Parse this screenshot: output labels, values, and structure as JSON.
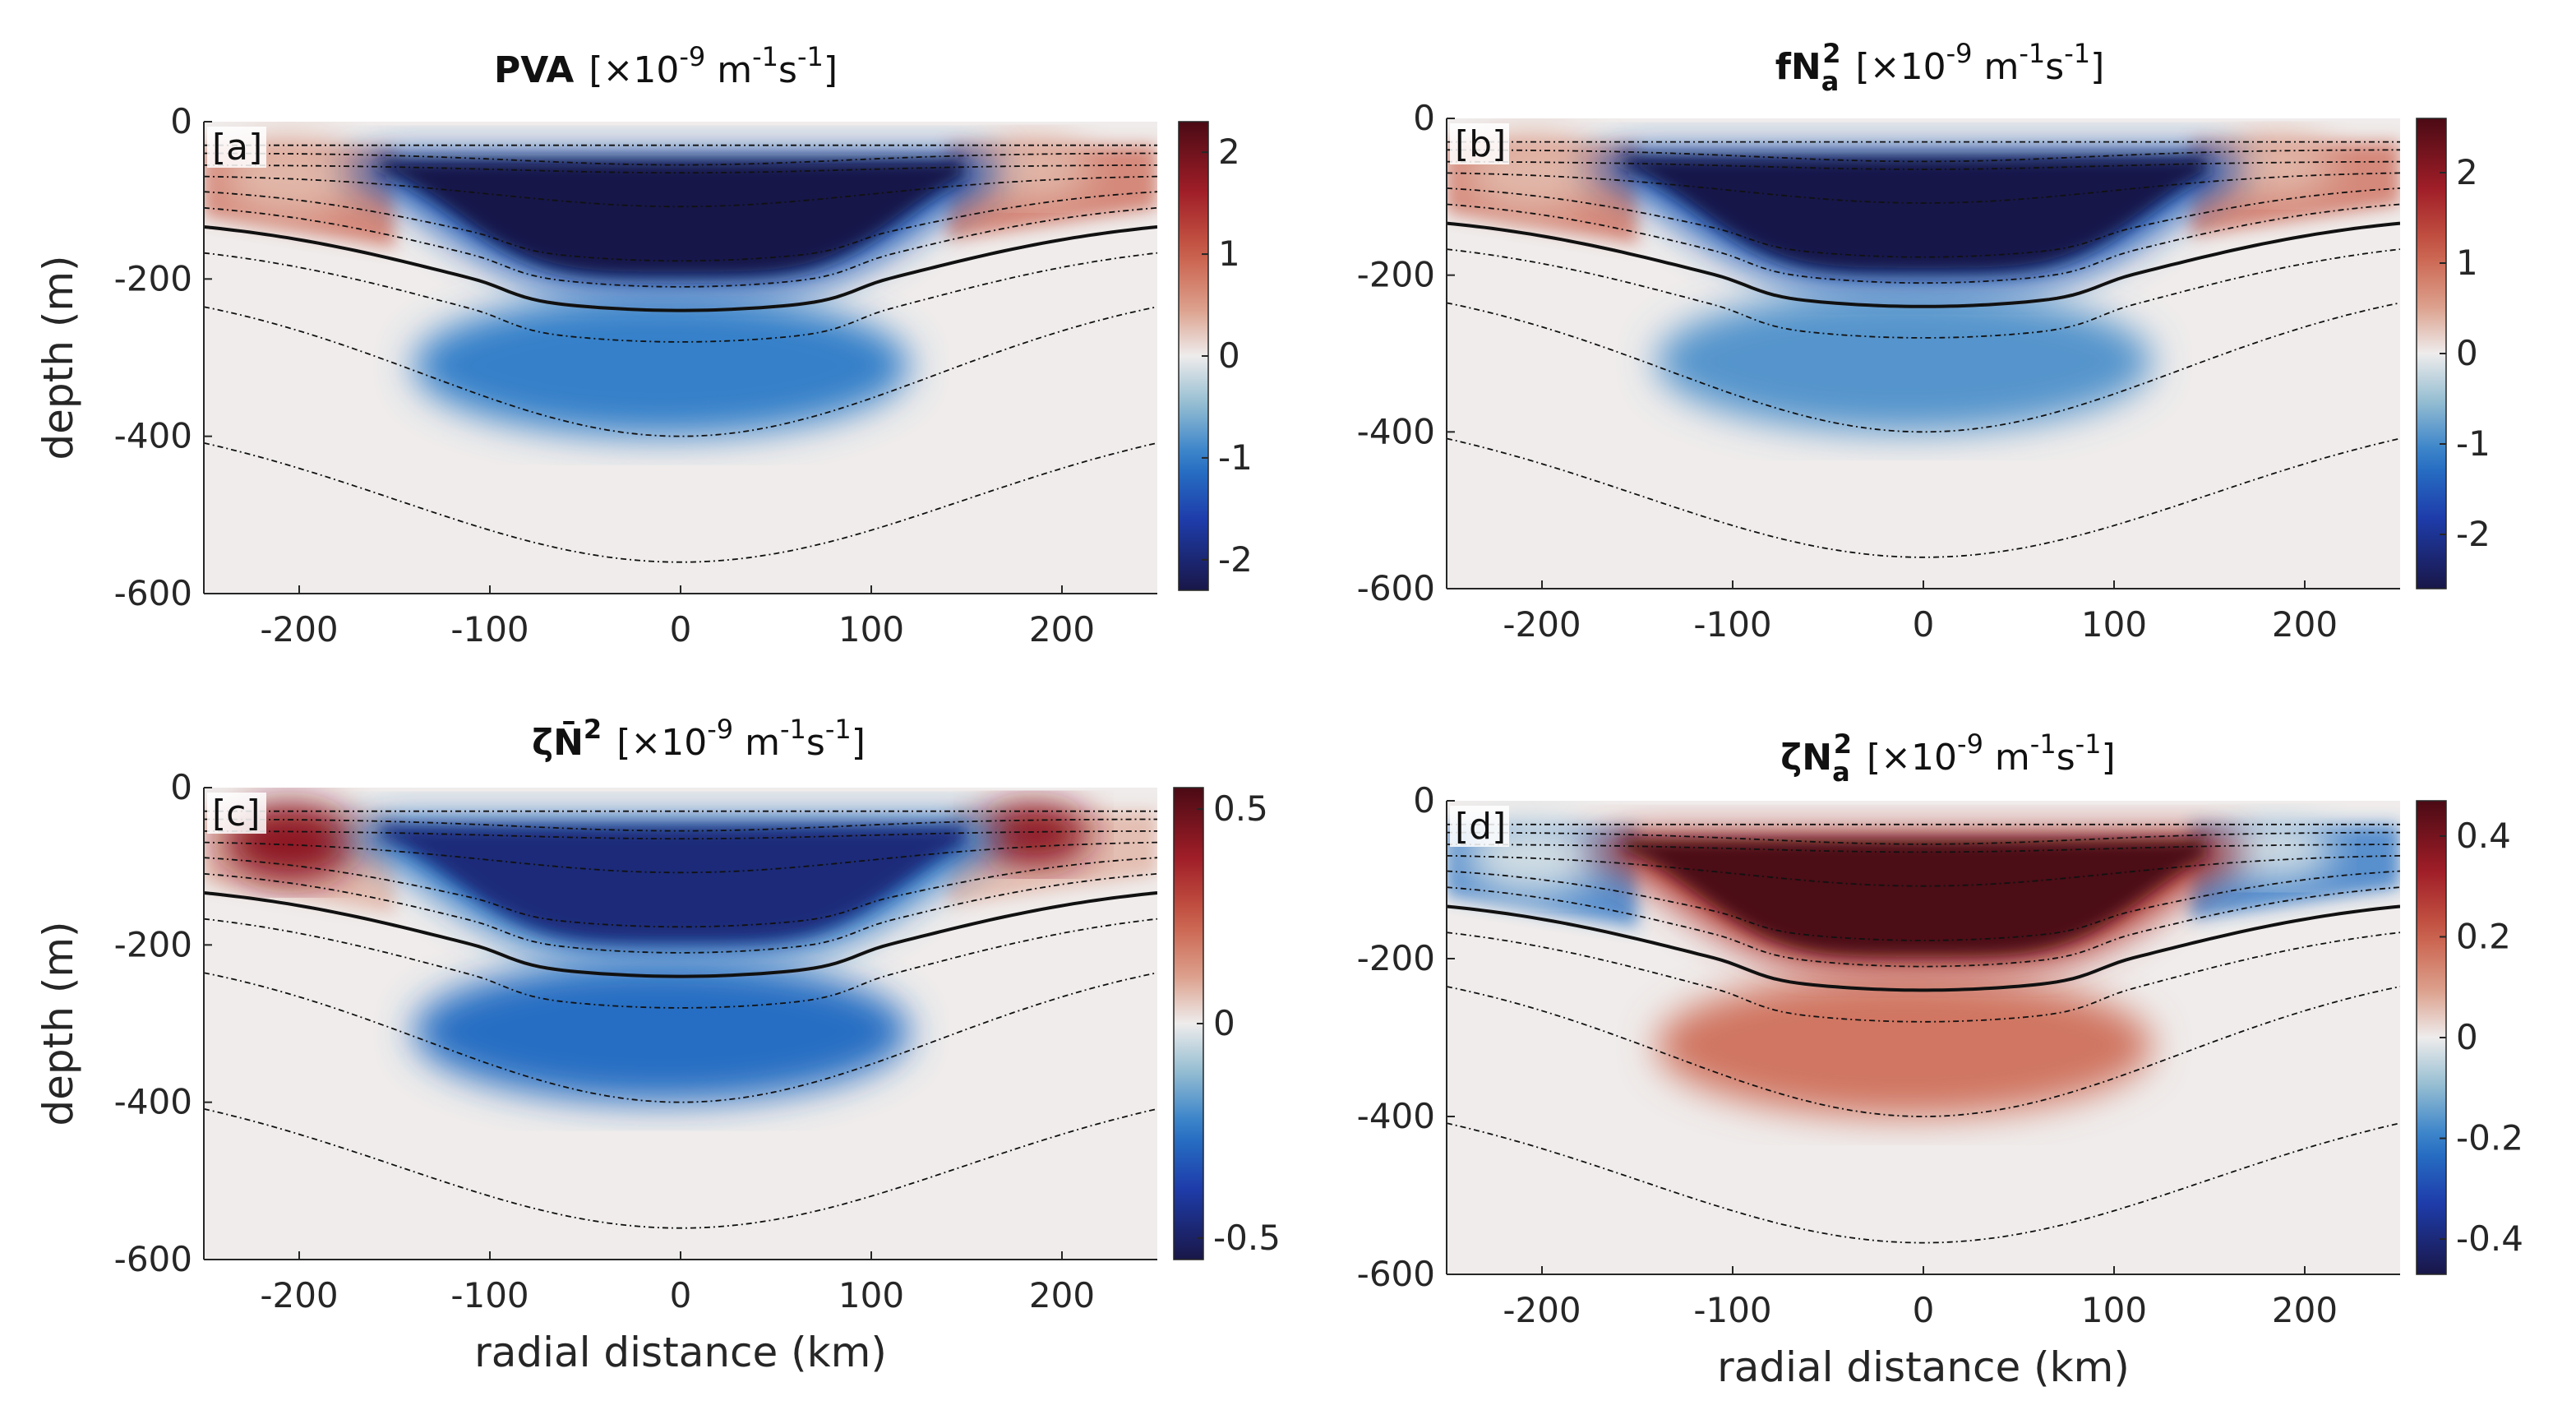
{
  "chart_data": [
    {
      "type": "heatmap",
      "panel_label": "[a]",
      "title": {
        "main": "PVA",
        "main_bold": true,
        "sub": "",
        "sup": "",
        "units_prefix": "[×10",
        "units_exp": "-9",
        "units_suffix": " m",
        "units_m_exp": "-1",
        "units_s": "s",
        "units_s_exp": "-1",
        "units_close": "]"
      },
      "xlabel": "",
      "ylabel": "depth (m)",
      "xlim": [
        -250,
        250
      ],
      "ylim": [
        -600,
        0
      ],
      "xticks": [
        -200,
        -100,
        0,
        100,
        200
      ],
      "yticks": [
        0,
        -200,
        -400,
        -600
      ],
      "colorbar": {
        "min": -2.3,
        "max": 2.3,
        "ticks": [
          2,
          1,
          0,
          -1,
          -2
        ]
      },
      "field": {
        "core_sign": -1,
        "core_intensity": 1.0,
        "deep_sign": -1,
        "deep_intensity": 0.3,
        "edge_sign": 1,
        "edge_intensity": 0.25,
        "lobe_sign": 1,
        "lobe_intensity": 0.1
      }
    },
    {
      "type": "heatmap",
      "panel_label": "[b]",
      "title": {
        "main": "fN",
        "main_bold": true,
        "sub": "a",
        "sup": "2",
        "units_prefix": "[×10",
        "units_exp": "-9",
        "units_suffix": " m",
        "units_m_exp": "-1",
        "units_s": "s",
        "units_s_exp": "-1",
        "units_close": "]"
      },
      "xlabel": "",
      "ylabel": "",
      "xlim": [
        -250,
        250
      ],
      "ylim": [
        -600,
        0
      ],
      "xticks": [
        -200,
        -100,
        0,
        100,
        200
      ],
      "yticks": [
        0,
        -200,
        -400,
        -600
      ],
      "colorbar": {
        "min": -2.6,
        "max": 2.6,
        "ticks": [
          2,
          1,
          0,
          -1,
          -2
        ]
      },
      "field": {
        "core_sign": -1,
        "core_intensity": 1.0,
        "deep_sign": -1,
        "deep_intensity": 0.25,
        "edge_sign": 1,
        "edge_intensity": 0.25,
        "lobe_sign": 1,
        "lobe_intensity": 0.1
      }
    },
    {
      "type": "heatmap",
      "panel_label": "[c]",
      "title": {
        "main": "ζN̄",
        "main_bold": true,
        "sub": "",
        "sup": "2",
        "units_prefix": "[×10",
        "units_exp": "-9",
        "units_suffix": " m",
        "units_m_exp": "-1",
        "units_s": "s",
        "units_s_exp": "-1",
        "units_close": "]"
      },
      "xlabel": "radial distance (km)",
      "ylabel": "depth (m)",
      "xlim": [
        -250,
        250
      ],
      "ylim": [
        -600,
        0
      ],
      "xticks": [
        -200,
        -100,
        0,
        100,
        200
      ],
      "yticks": [
        0,
        -200,
        -400,
        -600
      ],
      "colorbar": {
        "min": -0.55,
        "max": 0.55,
        "ticks": [
          0.5,
          0,
          -0.5
        ]
      },
      "field": {
        "core_sign": -1,
        "core_intensity": 0.85,
        "deep_sign": -1,
        "deep_intensity": 0.35,
        "edge_sign": 1,
        "edge_intensity": 0.1,
        "lobe_sign": 1,
        "lobe_intensity": 0.55
      }
    },
    {
      "type": "heatmap",
      "panel_label": "[d]",
      "title": {
        "main": "ζN",
        "main_bold": true,
        "sub": "a",
        "sup": "2",
        "units_prefix": "[×10",
        "units_exp": "-9",
        "units_suffix": " m",
        "units_m_exp": "-1",
        "units_s": "s",
        "units_s_exp": "-1",
        "units_close": "]"
      },
      "xlabel": "radial distance (km)",
      "ylabel": "",
      "xlim": [
        -250,
        250
      ],
      "ylim": [
        -600,
        0
      ],
      "xticks": [
        -200,
        -100,
        0,
        100,
        200
      ],
      "yticks": [
        0,
        -200,
        -400,
        -600
      ],
      "colorbar": {
        "min": -0.47,
        "max": 0.47,
        "ticks": [
          0.4,
          0.2,
          0,
          -0.2,
          -0.4
        ]
      },
      "field": {
        "core_sign": 1,
        "core_intensity": 1.0,
        "deep_sign": 1,
        "deep_intensity": 0.25,
        "edge_sign": -1,
        "edge_intensity": 0.3,
        "lobe_sign": -1,
        "lobe_intensity": 0.05
      }
    }
  ]
}
